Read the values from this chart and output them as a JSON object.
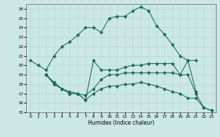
{
  "xlabel": "Humidex (Indice chaleur)",
  "bg_color": "#cce8e4",
  "grid_color": "#b0d8d4",
  "line_color": "#1a6b5e",
  "xlim": [
    -0.5,
    23.5
  ],
  "ylim": [
    15,
    26.5
  ],
  "yticks": [
    15,
    16,
    17,
    18,
    19,
    20,
    21,
    22,
    23,
    24,
    25,
    26
  ],
  "xticks": [
    0,
    1,
    2,
    3,
    4,
    5,
    6,
    7,
    8,
    9,
    10,
    11,
    12,
    13,
    14,
    15,
    16,
    17,
    18,
    19,
    20,
    21,
    22,
    23
  ],
  "lines": [
    {
      "x": [
        0,
        1,
        2,
        3,
        4,
        5,
        6,
        7,
        8,
        9,
        10,
        11,
        12,
        13,
        14,
        15,
        16,
        17,
        18,
        19,
        20,
        21
      ],
      "y": [
        20.5,
        20.0,
        19.5,
        21.0,
        22.0,
        22.5,
        23.2,
        24.0,
        24.0,
        23.5,
        25.0,
        25.2,
        25.2,
        25.8,
        26.2,
        25.8,
        24.2,
        23.3,
        22.2,
        21.0,
        20.5,
        17.2
      ],
      "marker": "D",
      "markersize": 2.5
    },
    {
      "x": [
        2,
        3,
        4,
        5,
        6,
        7,
        8,
        9,
        10,
        11,
        12,
        13,
        14,
        15,
        16,
        17,
        18,
        19,
        20,
        21
      ],
      "y": [
        19.0,
        18.2,
        17.5,
        17.2,
        17.0,
        16.3,
        20.5,
        19.5,
        19.5,
        19.5,
        19.8,
        20.0,
        20.0,
        20.2,
        20.2,
        20.2,
        20.2,
        19.0,
        20.5,
        20.5
      ],
      "marker": "D",
      "markersize": 2.5
    },
    {
      "x": [
        2,
        3,
        4,
        5,
        6,
        7,
        8,
        9,
        10,
        11,
        12,
        13,
        14,
        15,
        16,
        17,
        18,
        19,
        20,
        21,
        22,
        23
      ],
      "y": [
        19.0,
        18.0,
        17.5,
        17.0,
        17.0,
        16.8,
        17.5,
        18.5,
        19.0,
        19.0,
        19.2,
        19.2,
        19.2,
        19.2,
        19.2,
        19.2,
        19.2,
        19.0,
        19.0,
        17.0,
        15.5,
        15.2
      ],
      "marker": "D",
      "markersize": 2.5
    },
    {
      "x": [
        2,
        3,
        4,
        5,
        6,
        7,
        8,
        9,
        10,
        11,
        12,
        13,
        14,
        15,
        16,
        17,
        18,
        19,
        20,
        21,
        22,
        23
      ],
      "y": [
        19.0,
        18.0,
        17.5,
        17.0,
        17.0,
        16.3,
        17.0,
        17.5,
        17.8,
        17.8,
        18.0,
        18.0,
        18.2,
        18.0,
        17.8,
        17.5,
        17.2,
        17.0,
        16.5,
        16.5,
        15.5,
        15.2
      ],
      "marker": "D",
      "markersize": 2.5
    }
  ]
}
